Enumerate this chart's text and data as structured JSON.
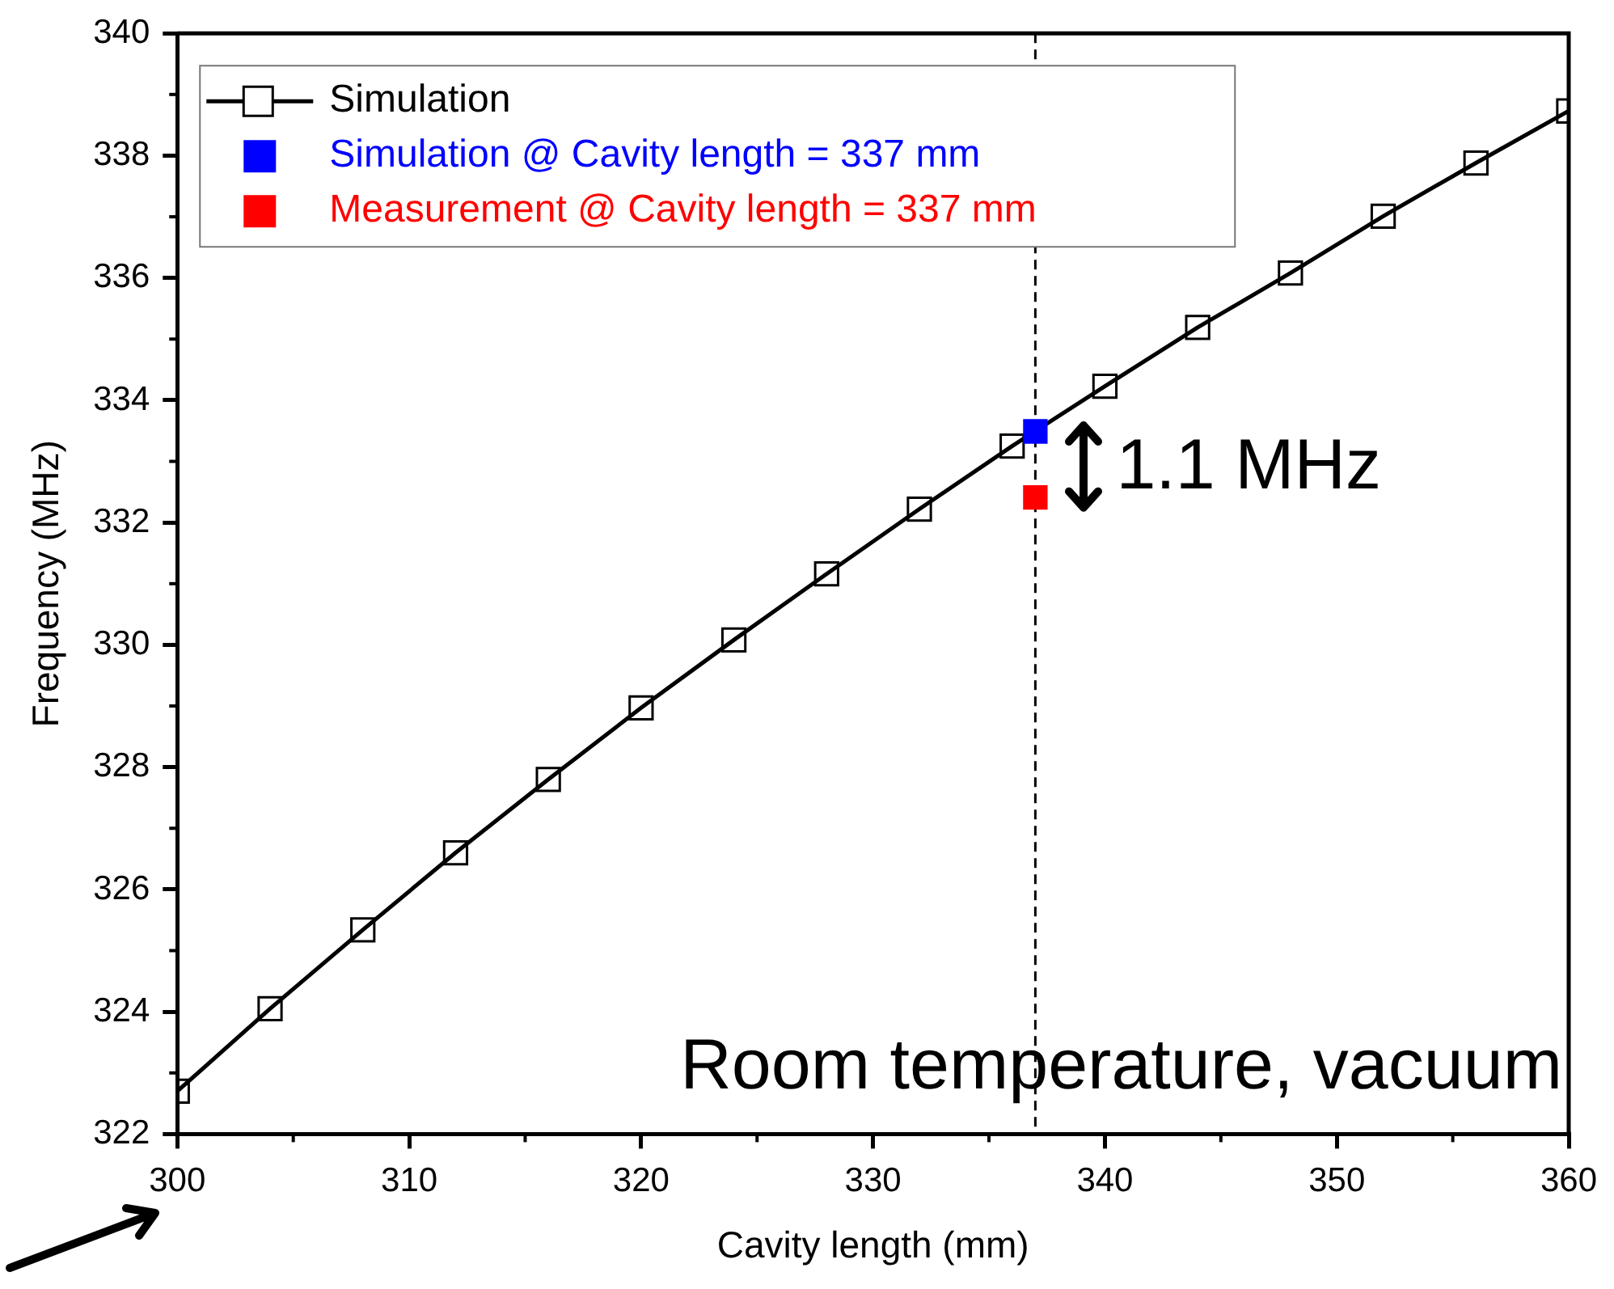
{
  "chart_data": {
    "type": "line",
    "xlabel": "Cavity length (mm)",
    "ylabel": "Frequency (MHz)",
    "xlim": [
      300,
      360
    ],
    "xticks": [
      300,
      310,
      320,
      330,
      340,
      350,
      360
    ],
    "ylim": [
      322,
      340
    ],
    "yticks": [
      322,
      324,
      326,
      328,
      330,
      332,
      334,
      336,
      338,
      340
    ],
    "grid": false,
    "legend": "top left",
    "marker": "square",
    "series": [
      {
        "name": "Simulation",
        "color": "#000000",
        "x": [
          300,
          304,
          308,
          312,
          316,
          320,
          324,
          328,
          332,
          336,
          340,
          344,
          348,
          352,
          356,
          360
        ],
        "values": [
          322.7,
          324.05,
          325.34,
          326.6,
          327.8,
          328.97,
          330.08,
          331.16,
          332.22,
          333.25,
          334.23,
          335.19,
          336.08,
          337.01,
          337.88,
          338.73
        ]
      },
      {
        "name": "Simulation @ Cavity length = 337 mm",
        "type": "scatter",
        "color": "#0000ff",
        "x": [
          337
        ],
        "values": [
          333.49
        ]
      },
      {
        "name": "Measurement @ Cavity length = 337 mm",
        "type": "scatter",
        "color": "#ff0000",
        "x": [
          337
        ],
        "values": [
          332.41
        ]
      }
    ],
    "ref_lines": [
      {
        "axis": "x",
        "value": 337,
        "color": "#000000",
        "line_style": "dashed"
      }
    ],
    "annotations": [
      "1.1 MHz",
      "Room temperature, vacuum"
    ]
  }
}
